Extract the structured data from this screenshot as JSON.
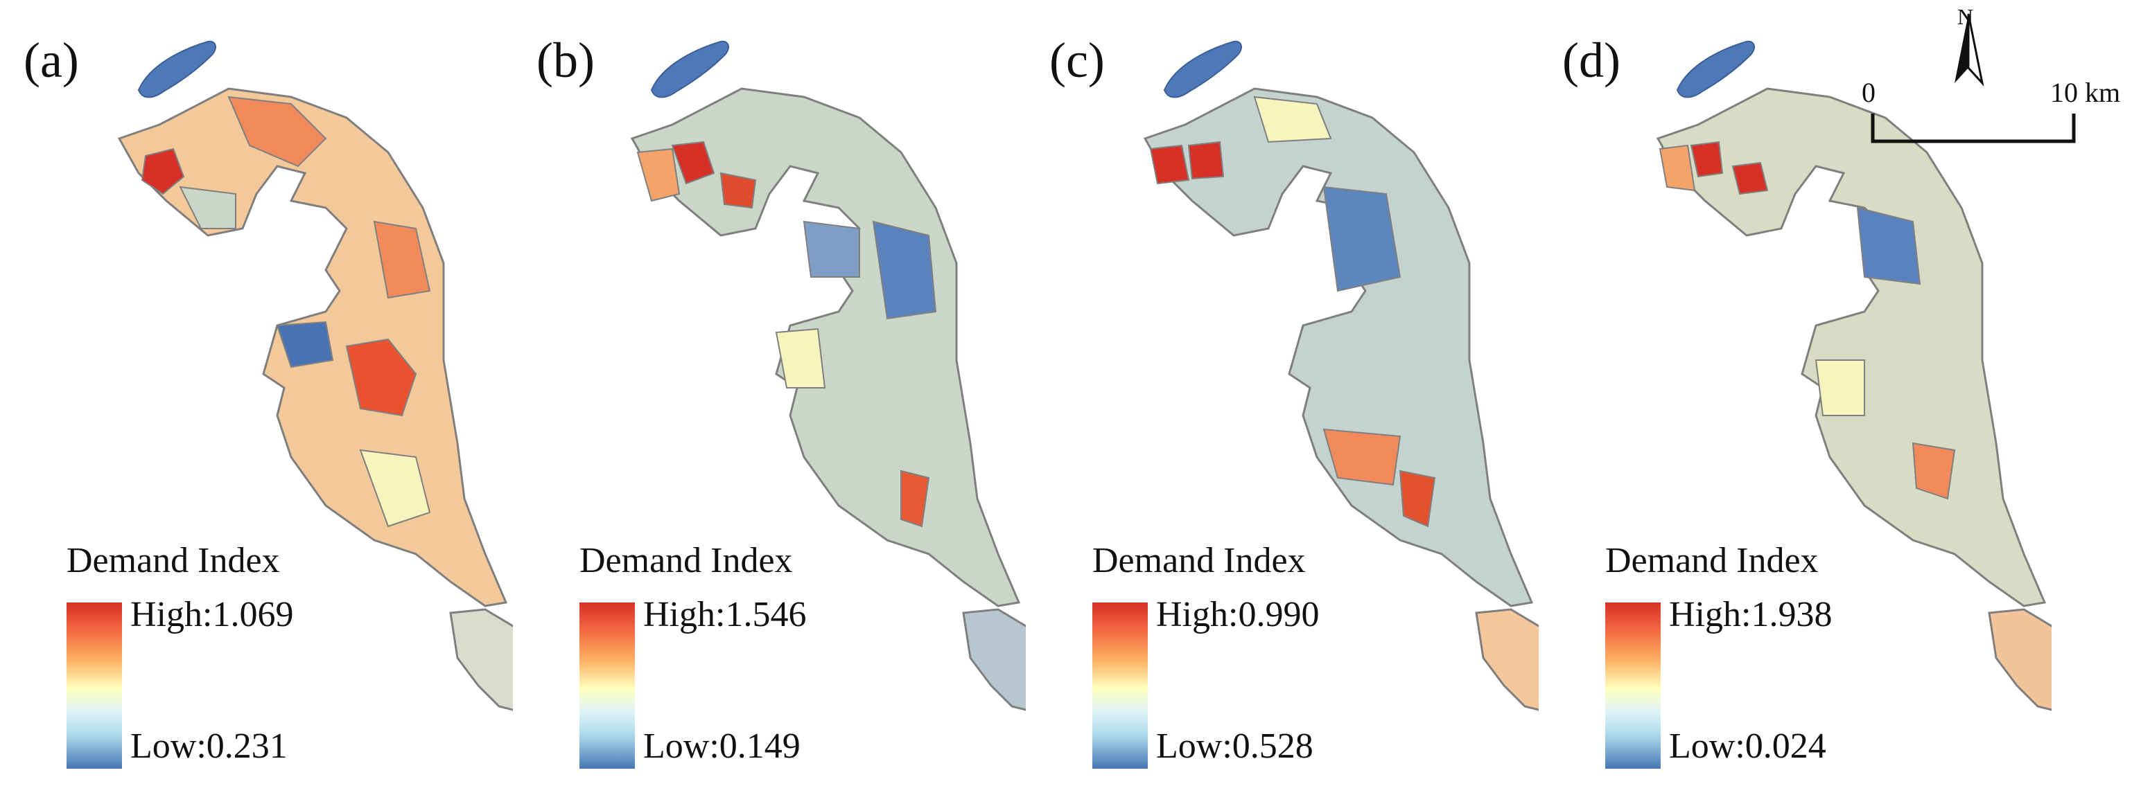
{
  "panels": [
    {
      "label": "(a)",
      "legend_title": "Demand Index",
      "high": "High:1.069",
      "low": "Low:0.231"
    },
    {
      "label": "(b)",
      "legend_title": "Demand Index",
      "high": "High:1.546",
      "low": "Low:0.149"
    },
    {
      "label": "(c)",
      "legend_title": "Demand Index",
      "high": "High:0.990",
      "low": "Low:0.528"
    },
    {
      "label": "(d)",
      "legend_title": "Demand Index",
      "high": "High:1.938",
      "low": "Low:0.024"
    }
  ],
  "north_arrow": {
    "label": "N"
  },
  "scale_bar": {
    "start": "0",
    "end": "10 km"
  },
  "colors": {
    "high": "#d73027",
    "mid_high": "#f4a46a",
    "mid": "#f7f4bd",
    "mid_low": "#c9d6c8",
    "low": "#4a73b5",
    "water": "#4d79b9",
    "border": "#7f7f7f"
  }
}
